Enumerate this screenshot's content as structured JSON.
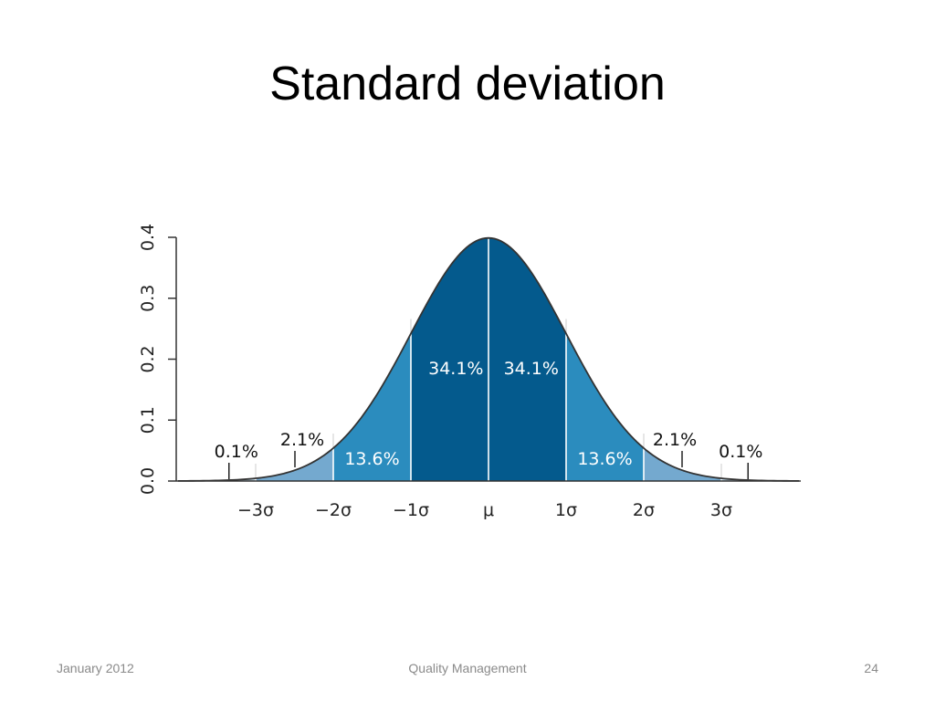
{
  "slide": {
    "title": "Standard deviation",
    "footer_date": "January 2012",
    "footer_center": "Quality Management",
    "page_number": "24"
  },
  "colors": {
    "band_1sigma": "#045a8d",
    "band_2sigma": "#2b8cbe",
    "band_3sigma": "#74a9cf",
    "band_tail": "#bdd7e7",
    "curve": "#333333"
  },
  "chart_data": {
    "type": "area",
    "title": "",
    "curve": "standard normal density",
    "xlim": [
      -4,
      4
    ],
    "ylim": [
      0,
      0.4
    ],
    "y_ticks": [
      "0.0",
      "0.1",
      "0.2",
      "0.3",
      "0.4"
    ],
    "y_tick_values": [
      0,
      0.1,
      0.2,
      0.3,
      0.4
    ],
    "x_ticks": [
      "−3σ",
      "−2σ",
      "−1σ",
      "μ",
      "1σ",
      "2σ",
      "3σ"
    ],
    "x_tick_values": [
      -3,
      -2,
      -1,
      0,
      1,
      2,
      3
    ],
    "regions": [
      {
        "from": -4,
        "to": -3,
        "label": "0.1%",
        "value": 0.1
      },
      {
        "from": -3,
        "to": -2,
        "label": "2.1%",
        "value": 2.1
      },
      {
        "from": -2,
        "to": -1,
        "label": "13.6%",
        "value": 13.6
      },
      {
        "from": -1,
        "to": 0,
        "label": "34.1%",
        "value": 34.1
      },
      {
        "from": 0,
        "to": 1,
        "label": "34.1%",
        "value": 34.1
      },
      {
        "from": 1,
        "to": 2,
        "label": "13.6%",
        "value": 13.6
      },
      {
        "from": 2,
        "to": 3,
        "label": "2.1%",
        "value": 2.1
      },
      {
        "from": 3,
        "to": 4,
        "label": "0.1%",
        "value": 0.1
      }
    ]
  }
}
